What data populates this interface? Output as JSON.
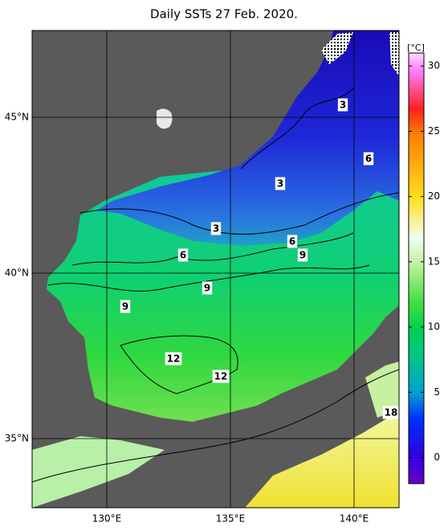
{
  "title": "Daily SSTs 27 Feb. 2020.",
  "lat_labels": [
    "45°N",
    "40°N",
    "35°N"
  ],
  "lon_labels": [
    "130°E",
    "135°E",
    "140°E"
  ],
  "colorbar": {
    "unit": "[°C]",
    "lim": [
      -2,
      31
    ],
    "ticks": [
      0,
      5,
      10,
      15,
      20,
      25,
      30
    ]
  },
  "contour_labels": [
    3,
    6,
    3,
    3,
    6,
    9,
    6,
    9,
    9,
    12,
    12,
    18
  ]
}
